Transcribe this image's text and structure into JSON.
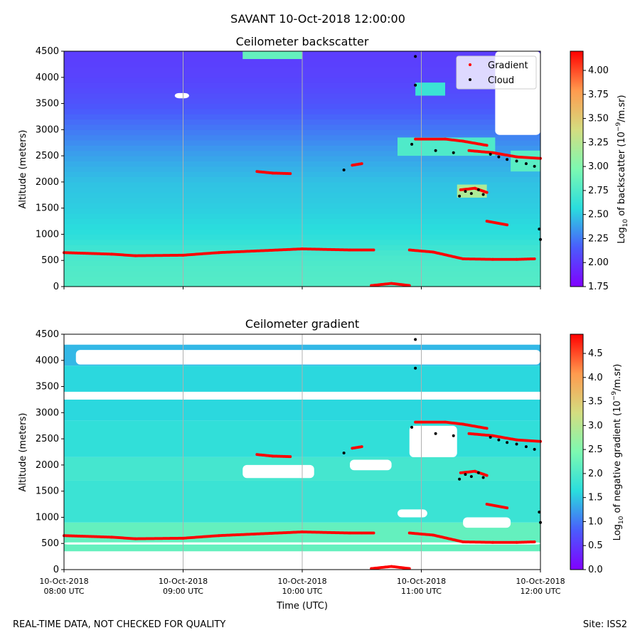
{
  "figure": {
    "suptitle": "SAVANT 10-Oct-2018 12:00:00",
    "footer_left": "REAL-TIME DATA, NOT CHECKED FOR QUALITY",
    "footer_right": "Site: ISS2"
  },
  "colors": {
    "gradient_marker": "#ff0000",
    "cloud_marker": "#000000",
    "colormap": [
      "#8000ff",
      "#4a5cfc",
      "#2adddd",
      "#7df9b1",
      "#d4dd80",
      "#ff9a4e",
      "#ff0000"
    ]
  },
  "chart_data": [
    {
      "type": "heatmap",
      "title": "Ceilometer backscatter",
      "xlabel": "",
      "ylabel": "Altitude (meters)",
      "xlim": [
        "10-Oct-2018 08:00 UTC",
        "10-Oct-2018 12:00 UTC"
      ],
      "xticks": [
        [
          "10-Oct-2018",
          "08:00 UTC"
        ],
        [
          "10-Oct-2018",
          "09:00 UTC"
        ],
        [
          "10-Oct-2018",
          "10:00 UTC"
        ],
        [
          "10-Oct-2018",
          "11:00 UTC"
        ],
        [
          "10-Oct-2018",
          "12:00 UTC"
        ]
      ],
      "xtick_hours": [
        0,
        1,
        2,
        3,
        4
      ],
      "ylim": [
        0,
        4500
      ],
      "yticks": [
        0,
        500,
        1000,
        1500,
        2000,
        2500,
        3000,
        3500,
        4000,
        4500
      ],
      "grid": "vertical",
      "colorbar": {
        "label_prefix": "Log",
        "label_sub": "10",
        "label_mid": " of backscatter (10",
        "label_sup": "−9",
        "label_suffix": "/m.sr)",
        "range": [
          1.75,
          4.2
        ],
        "ticks": [
          1.75,
          2.0,
          2.25,
          2.5,
          2.75,
          3.0,
          3.25,
          3.5,
          3.75,
          4.0
        ],
        "tick_labels": [
          "1.75",
          "2.00",
          "2.25",
          "2.50",
          "2.75",
          "3.00",
          "3.25",
          "3.50",
          "3.75",
          "4.00"
        ]
      },
      "legend": {
        "position": "top-right",
        "entries": [
          {
            "name": "Gradient",
            "color": "#ff0000"
          },
          {
            "name": "Cloud",
            "color": "#000000"
          }
        ]
      },
      "field": {
        "description": "background log10 backscatter by altitude (hour 0 to 4)",
        "profile_alt": [
          0,
          300,
          600,
          1000,
          1500,
          2000,
          2500,
          3000,
          3500,
          4000,
          4500
        ],
        "profile_val": [
          2.78,
          2.76,
          2.72,
          2.58,
          2.52,
          2.48,
          2.38,
          2.25,
          2.12,
          2.05,
          2.02
        ],
        "gaps": [
          {
            "x": [
              3.62,
              4.0
            ],
            "y": [
              2900,
              4500
            ]
          },
          {
            "x": [
              0.93,
              1.05
            ],
            "y": [
              3600,
              3700
            ]
          }
        ],
        "patches": [
          {
            "x": [
              1.5,
              2.0
            ],
            "y": [
              4350,
              4500
            ],
            "v": 2.85
          },
          {
            "x": [
              2.95,
              3.2
            ],
            "y": [
              3650,
              3900
            ],
            "v": 2.65
          },
          {
            "x": [
              2.8,
              3.62
            ],
            "y": [
              2500,
              2850
            ],
            "v": 2.75
          },
          {
            "x": [
              3.3,
              3.55
            ],
            "y": [
              1700,
              1950
            ],
            "v": 3.2
          },
          {
            "x": [
              3.75,
              4.0
            ],
            "y": [
              2200,
              2600
            ],
            "v": 2.8
          }
        ]
      },
      "gradient_series": [
        {
          "time_h": [
            0.0,
            0.4,
            0.6,
            1.0,
            1.3,
            1.6,
            2.0,
            2.4,
            2.6
          ],
          "alt_m": [
            650,
            620,
            590,
            600,
            650,
            680,
            720,
            700,
            700
          ]
        },
        {
          "time_h": [
            2.9,
            3.1,
            3.35,
            3.6,
            3.8,
            3.95
          ],
          "alt_m": [
            700,
            660,
            530,
            520,
            520,
            530
          ]
        },
        {
          "time_h": [
            1.62,
            1.75,
            1.9
          ],
          "alt_m": [
            2200,
            2170,
            2160
          ]
        },
        {
          "time_h": [
            2.42,
            2.5
          ],
          "alt_m": [
            2320,
            2350
          ]
        },
        {
          "time_h": [
            2.95,
            3.2,
            3.35,
            3.55
          ],
          "alt_m": [
            2820,
            2820,
            2780,
            2700
          ]
        },
        {
          "time_h": [
            3.4,
            3.6,
            3.8,
            4.0
          ],
          "alt_m": [
            2600,
            2560,
            2480,
            2450
          ]
        },
        {
          "time_h": [
            3.33,
            3.45,
            3.55
          ],
          "alt_m": [
            1850,
            1880,
            1800
          ]
        },
        {
          "time_h": [
            3.55,
            3.72
          ],
          "alt_m": [
            1250,
            1180
          ]
        },
        {
          "time_h": [
            2.58,
            2.75,
            2.9
          ],
          "alt_m": [
            20,
            60,
            20
          ]
        }
      ],
      "cloud_series": [
        {
          "time_h": [
            2.35,
            2.95,
            2.95,
            2.92,
            3.12,
            3.27,
            3.32,
            3.37,
            3.42,
            3.48,
            3.52,
            3.58,
            3.65,
            3.72,
            3.8,
            3.88,
            3.95,
            3.99,
            4.0
          ],
          "alt_m": [
            2230,
            4400,
            3850,
            2720,
            2600,
            2560,
            1730,
            1820,
            1780,
            1850,
            1760,
            2530,
            2480,
            2430,
            2400,
            2350,
            2300,
            1100,
            900
          ]
        }
      ]
    },
    {
      "type": "heatmap",
      "title": "Ceilometer gradient",
      "xlabel": "Time (UTC)",
      "ylabel": "Altitude (meters)",
      "xlim": [
        "10-Oct-2018 08:00 UTC",
        "10-Oct-2018 12:00 UTC"
      ],
      "xticks": [
        [
          "10-Oct-2018",
          "08:00 UTC"
        ],
        [
          "10-Oct-2018",
          "09:00 UTC"
        ],
        [
          "10-Oct-2018",
          "10:00 UTC"
        ],
        [
          "10-Oct-2018",
          "11:00 UTC"
        ],
        [
          "10-Oct-2018",
          "12:00 UTC"
        ]
      ],
      "xtick_hours": [
        0,
        1,
        2,
        3,
        4
      ],
      "ylim": [
        0,
        4500
      ],
      "yticks": [
        0,
        500,
        1000,
        1500,
        2000,
        2500,
        3000,
        3500,
        4000,
        4500
      ],
      "grid": "vertical",
      "colorbar": {
        "label_prefix": "Log",
        "label_sub": "10",
        "label_mid": " of negative gradient (10",
        "label_sup": "−9",
        "label_suffix": "/m.sr)",
        "range": [
          0.0,
          4.9
        ],
        "ticks": [
          0.0,
          0.5,
          1.0,
          1.5,
          2.0,
          2.5,
          3.0,
          3.5,
          4.0,
          4.5
        ],
        "tick_labels": [
          "0.0",
          "0.5",
          "1.0",
          "1.5",
          "2.0",
          "2.5",
          "3.0",
          "3.5",
          "4.0",
          "4.5"
        ]
      },
      "field": {
        "description": "layered negative-gradient field with empty (white) regions",
        "bands": [
          {
            "y": [
              350,
              900
            ],
            "v": 2.2
          },
          {
            "y": [
              900,
              1700
            ],
            "v": 1.8
          },
          {
            "y": [
              1700,
              2150
            ],
            "v": 1.9
          },
          {
            "y": [
              2150,
              2850
            ],
            "v": 1.7
          },
          {
            "y": [
              2850,
              3250
            ],
            "v": 1.6
          },
          {
            "y": [
              3400,
              3900
            ],
            "v": 1.6
          },
          {
            "y": [
              3900,
              4300
            ],
            "v": 1.4
          }
        ],
        "gaps": [
          {
            "x": [
              0.0,
              4.0
            ],
            "y": [
              0,
              150
            ]
          },
          {
            "x": [
              0.0,
              4.0
            ],
            "y": [
              480,
              520
            ]
          },
          {
            "x": [
              1.5,
              2.1
            ],
            "y": [
              1750,
              2000
            ]
          },
          {
            "x": [
              2.4,
              2.75
            ],
            "y": [
              1900,
              2100
            ]
          },
          {
            "x": [
              2.8,
              3.05
            ],
            "y": [
              1000,
              1150
            ]
          },
          {
            "x": [
              3.35,
              3.75
            ],
            "y": [
              800,
              1000
            ]
          },
          {
            "x": [
              0.2,
              0.9
            ],
            "y": [
              3280,
              3380
            ]
          },
          {
            "x": [
              0.1,
              4.0
            ],
            "y": [
              3920,
              4200
            ]
          },
          {
            "x": [
              2.9,
              3.3
            ],
            "y": [
              2150,
              2750
            ]
          }
        ]
      },
      "gradient_series": [
        {
          "time_h": [
            0.0,
            0.4,
            0.6,
            1.0,
            1.3,
            1.6,
            2.0,
            2.4,
            2.6
          ],
          "alt_m": [
            650,
            620,
            590,
            600,
            650,
            680,
            720,
            700,
            700
          ]
        },
        {
          "time_h": [
            2.9,
            3.1,
            3.35,
            3.6,
            3.8,
            3.95
          ],
          "alt_m": [
            700,
            660,
            530,
            520,
            520,
            530
          ]
        },
        {
          "time_h": [
            1.62,
            1.75,
            1.9
          ],
          "alt_m": [
            2200,
            2170,
            2160
          ]
        },
        {
          "time_h": [
            2.42,
            2.5
          ],
          "alt_m": [
            2320,
            2350
          ]
        },
        {
          "time_h": [
            2.95,
            3.2,
            3.35,
            3.55
          ],
          "alt_m": [
            2820,
            2820,
            2780,
            2700
          ]
        },
        {
          "time_h": [
            3.4,
            3.6,
            3.8,
            4.0
          ],
          "alt_m": [
            2600,
            2560,
            2480,
            2450
          ]
        },
        {
          "time_h": [
            3.33,
            3.45,
            3.55
          ],
          "alt_m": [
            1850,
            1880,
            1800
          ]
        },
        {
          "time_h": [
            3.55,
            3.72
          ],
          "alt_m": [
            1250,
            1180
          ]
        },
        {
          "time_h": [
            2.58,
            2.75,
            2.9
          ],
          "alt_m": [
            20,
            60,
            20
          ]
        }
      ],
      "cloud_series": [
        {
          "time_h": [
            2.35,
            2.95,
            2.95,
            2.92,
            3.12,
            3.27,
            3.32,
            3.37,
            3.42,
            3.48,
            3.52,
            3.58,
            3.65,
            3.72,
            3.8,
            3.88,
            3.95,
            3.99,
            4.0
          ],
          "alt_m": [
            2230,
            4400,
            3850,
            2720,
            2600,
            2560,
            1730,
            1820,
            1780,
            1850,
            1760,
            2530,
            2480,
            2430,
            2400,
            2350,
            2300,
            1100,
            900
          ]
        }
      ]
    }
  ]
}
